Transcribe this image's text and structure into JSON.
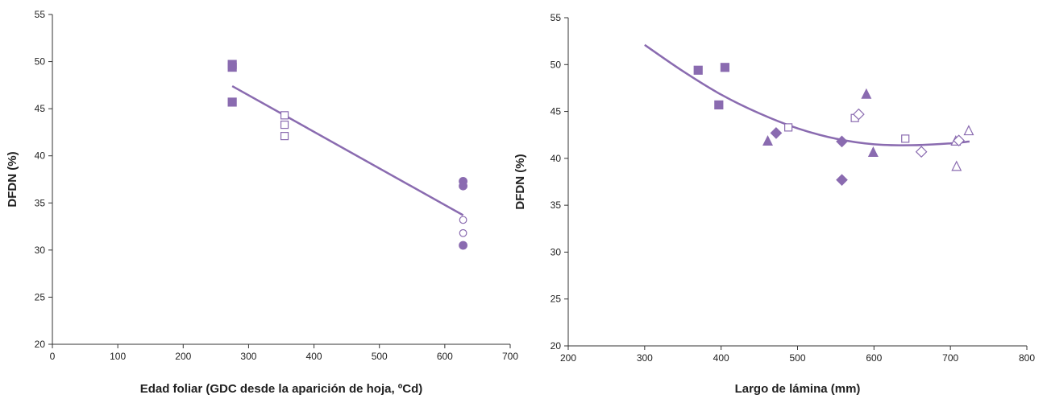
{
  "chart_data": [
    {
      "type": "scatter",
      "title": "",
      "xlabel": "Edad foliar (GDC desde la aparición de hoja, ºCd)",
      "ylabel": "DFDN (%)",
      "xlim": [
        0,
        700
      ],
      "ylim": [
        20,
        55
      ],
      "xticks": [
        "0",
        "100",
        "200",
        "300",
        "400",
        "500",
        "600",
        "700"
      ],
      "yticks": [
        "20",
        "25",
        "30",
        "35",
        "40",
        "45",
        "50",
        "55"
      ],
      "grid": false,
      "color": "#8a6bb0",
      "series": [
        {
          "marker": "square-filled",
          "points": [
            [
              275,
              49.7
            ],
            [
              275,
              49.4
            ],
            [
              275,
              45.7
            ]
          ]
        },
        {
          "marker": "square-open",
          "points": [
            [
              355,
              44.3
            ],
            [
              355,
              43.3
            ],
            [
              355,
              42.1
            ]
          ]
        },
        {
          "marker": "circle-filled",
          "points": [
            [
              628,
              37.3
            ],
            [
              628,
              36.8
            ],
            [
              628,
              30.5
            ]
          ]
        },
        {
          "marker": "circle-open",
          "points": [
            [
              628,
              33.2
            ],
            [
              628,
              31.8
            ]
          ]
        }
      ],
      "trendline": {
        "type": "linear",
        "x": [
          275,
          628
        ],
        "y": [
          47.4,
          33.7
        ]
      }
    },
    {
      "type": "scatter",
      "title": "",
      "xlabel": "Largo de lámina (mm)",
      "ylabel": "DFDN (%)",
      "xlim": [
        200,
        800
      ],
      "ylim": [
        20,
        55
      ],
      "xticks": [
        "200",
        "300",
        "400",
        "500",
        "600",
        "700",
        "800"
      ],
      "yticks": [
        "20",
        "25",
        "30",
        "35",
        "40",
        "45",
        "50",
        "55"
      ],
      "grid": false,
      "color": "#8a6bb0",
      "series": [
        {
          "marker": "square-filled",
          "points": [
            [
              370,
              49.4
            ],
            [
              405,
              49.7
            ],
            [
              397,
              45.7
            ]
          ]
        },
        {
          "marker": "square-open",
          "points": [
            [
              488,
              43.3
            ],
            [
              575,
              44.3
            ],
            [
              641,
              42.1
            ]
          ]
        },
        {
          "marker": "triangle-filled",
          "points": [
            [
              461,
              41.8
            ],
            [
              590,
              46.8
            ],
            [
              599,
              40.6
            ]
          ]
        },
        {
          "marker": "triangle-open",
          "points": [
            [
              708,
              39.1
            ],
            [
              724,
              42.9
            ],
            [
              707,
              41.8
            ]
          ]
        },
        {
          "marker": "diamond-filled",
          "points": [
            [
              472,
              42.7
            ],
            [
              558,
              41.8
            ],
            [
              558,
              37.7
            ]
          ]
        },
        {
          "marker": "diamond-open",
          "points": [
            [
              580,
              44.7
            ],
            [
              662,
              40.7
            ],
            [
              711,
              41.9
            ]
          ]
        }
      ],
      "trendline": {
        "type": "polynomial",
        "x": [
          300,
          350,
          400,
          450,
          500,
          550,
          600,
          650,
          700,
          725
        ],
        "y": [
          52.1,
          49.3,
          46.8,
          44.8,
          43.2,
          42.1,
          41.5,
          41.4,
          41.6,
          41.8
        ]
      }
    }
  ]
}
